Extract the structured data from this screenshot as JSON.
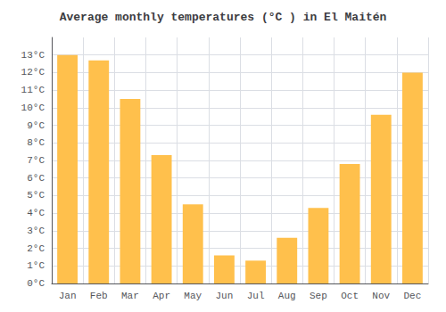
{
  "chart_data": {
    "type": "bar",
    "title": "Average monthly temperatures (°C ) in El Maitén",
    "categories": [
      "Jan",
      "Feb",
      "Mar",
      "Apr",
      "May",
      "Jun",
      "Jul",
      "Aug",
      "Sep",
      "Oct",
      "Nov",
      "Dec"
    ],
    "values": [
      13.0,
      12.7,
      10.5,
      7.3,
      4.5,
      1.6,
      1.3,
      2.6,
      4.3,
      6.8,
      9.6,
      12.0
    ],
    "color": "#FFC04C",
    "ylim": [
      0,
      14
    ],
    "yticks": [
      {
        "value": 0,
        "label": "0°C"
      },
      {
        "value": 1,
        "label": "1°C"
      },
      {
        "value": 2,
        "label": "2°C"
      },
      {
        "value": 3,
        "label": "3°C"
      },
      {
        "value": 4,
        "label": "4°C"
      },
      {
        "value": 5,
        "label": "5°C"
      },
      {
        "value": 6,
        "label": "6°C"
      },
      {
        "value": 7,
        "label": "7°C"
      },
      {
        "value": 8,
        "label": "8°C"
      },
      {
        "value": 9,
        "label": "9°C"
      },
      {
        "value": 10,
        "label": "10°C"
      },
      {
        "value": 11,
        "label": "11°C"
      },
      {
        "value": 12,
        "label": "12°C"
      },
      {
        "value": 13,
        "label": "13°C"
      }
    ],
    "grid": true
  }
}
